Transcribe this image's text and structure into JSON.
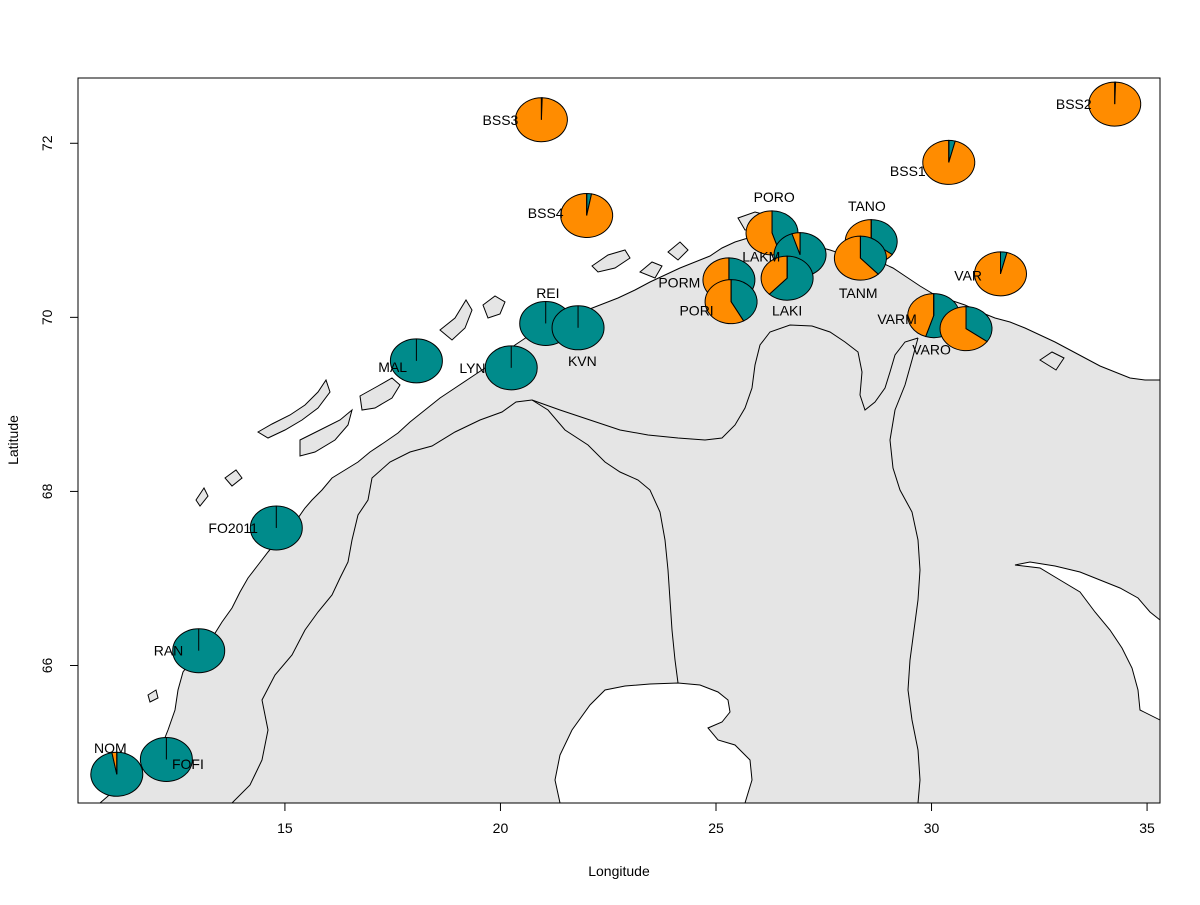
{
  "map": {
    "xlabel": "Longitude",
    "ylabel": "Latitude",
    "xlim": [
      10.2,
      35.3
    ],
    "ylim": [
      64.42,
      72.75
    ],
    "x_ticks": [
      15,
      20,
      25,
      30,
      35
    ],
    "y_ticks": [
      66,
      68,
      70,
      72
    ],
    "colors": {
      "land": "#e5e5e5",
      "sea": "#ffffff",
      "teal": "#008b8b",
      "orange": "#ff8c00",
      "outline": "#000000"
    }
  },
  "chart_data": {
    "type": "pie-map",
    "description_series": [
      "teal",
      "orange"
    ],
    "sites": [
      {
        "name": "BSS3",
        "lon": 20.95,
        "lat": 72.27,
        "teal": 0.005,
        "orange": 0.995,
        "label_lon": 20.0,
        "label_lat": 72.27
      },
      {
        "name": "BSS2",
        "lon": 34.25,
        "lat": 72.45,
        "teal": 0.005,
        "orange": 0.995,
        "label_lon": 33.3,
        "label_lat": 72.45
      },
      {
        "name": "BSS1",
        "lon": 30.4,
        "lat": 71.78,
        "teal": 0.04,
        "orange": 0.96,
        "label_lon": 29.45,
        "label_lat": 71.68
      },
      {
        "name": "BSS4",
        "lon": 22.0,
        "lat": 71.17,
        "teal": 0.03,
        "orange": 0.97,
        "label_lon": 21.05,
        "label_lat": 71.2
      },
      {
        "name": "PORO",
        "lon": 26.3,
        "lat": 70.97,
        "teal": 0.45,
        "orange": 0.55,
        "label_lon": 26.35,
        "label_lat": 71.38
      },
      {
        "name": "TANO",
        "lon": 28.6,
        "lat": 70.87,
        "teal": 0.35,
        "orange": 0.65,
        "label_lon": 28.5,
        "label_lat": 71.28
      },
      {
        "name": "LAKM",
        "lon": 26.95,
        "lat": 70.72,
        "teal": 0.95,
        "orange": 0.05,
        "label_lon": 26.05,
        "label_lat": 70.7
      },
      {
        "name": "TANM",
        "lon": 28.35,
        "lat": 70.68,
        "teal": 0.38,
        "orange": 0.62,
        "label_lon": 28.3,
        "label_lat": 70.28
      },
      {
        "name": "VAR",
        "lon": 31.6,
        "lat": 70.5,
        "teal": 0.04,
        "orange": 0.96,
        "label_lon": 30.85,
        "label_lat": 70.48
      },
      {
        "name": "LAKI",
        "lon": 26.65,
        "lat": 70.45,
        "teal": 0.62,
        "orange": 0.38,
        "label_lon": 26.65,
        "label_lat": 70.08
      },
      {
        "name": "PORM",
        "lon": 25.3,
        "lat": 70.43,
        "teal": 0.35,
        "orange": 0.65,
        "label_lon": 24.15,
        "label_lat": 70.4
      },
      {
        "name": "PORI",
        "lon": 25.35,
        "lat": 70.18,
        "teal": 0.42,
        "orange": 0.58,
        "label_lon": 24.55,
        "label_lat": 70.08
      },
      {
        "name": "VARM",
        "lon": 30.05,
        "lat": 70.02,
        "teal": 0.55,
        "orange": 0.45,
        "label_lon": 29.2,
        "label_lat": 69.98
      },
      {
        "name": "VARO",
        "lon": 30.8,
        "lat": 69.87,
        "teal": 0.35,
        "orange": 0.65,
        "label_lon": 30.0,
        "label_lat": 69.63
      },
      {
        "name": "REI",
        "lon": 21.05,
        "lat": 69.93,
        "teal": 1.0,
        "orange": 0.0,
        "label_lon": 21.1,
        "label_lat": 70.28
      },
      {
        "name": "KVN",
        "lon": 21.8,
        "lat": 69.88,
        "teal": 1.0,
        "orange": 0.0,
        "label_lon": 21.9,
        "label_lat": 69.5
      },
      {
        "name": "MAL",
        "lon": 18.05,
        "lat": 69.5,
        "teal": 1.0,
        "orange": 0.0,
        "label_lon": 17.5,
        "label_lat": 69.43
      },
      {
        "name": "LYN",
        "lon": 20.25,
        "lat": 69.42,
        "teal": 1.0,
        "orange": 0.0,
        "label_lon": 19.35,
        "label_lat": 69.42
      },
      {
        "name": "FO2011",
        "lon": 14.8,
        "lat": 67.58,
        "teal": 1.0,
        "orange": 0.0,
        "label_lon": 13.8,
        "label_lat": 67.58
      },
      {
        "name": "RAN",
        "lon": 13.0,
        "lat": 66.17,
        "teal": 1.0,
        "orange": 0.0,
        "label_lon": 12.3,
        "label_lat": 66.17
      },
      {
        "name": "FOFI",
        "lon": 12.25,
        "lat": 64.92,
        "teal": 1.0,
        "orange": 0.0,
        "label_lon": 12.75,
        "label_lat": 64.87
      },
      {
        "name": "NOM",
        "lon": 11.1,
        "lat": 64.75,
        "teal": 0.97,
        "orange": 0.03,
        "label_lon": 10.95,
        "label_lat": 65.05
      }
    ]
  }
}
